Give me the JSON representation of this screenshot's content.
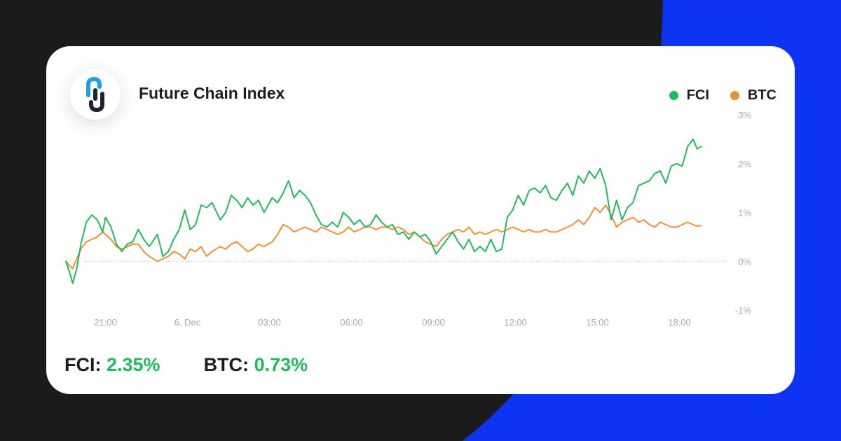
{
  "header": {
    "title": "Future Chain Index"
  },
  "legend": [
    {
      "name": "FCI",
      "color": "#1dbb5b"
    },
    {
      "name": "BTC",
      "color": "#f18f30"
    }
  ],
  "summary": [
    {
      "label": "FCI:",
      "value": "2.35%"
    },
    {
      "label": "BTC:",
      "value": "0.73%"
    }
  ],
  "colors": {
    "positive": "#1dbb5b",
    "fci": "#1dbb5b",
    "btc": "#f18f30",
    "bg_blue": "#0d34f2",
    "bg_dark": "#1b1b1c"
  },
  "chart_data": {
    "type": "line",
    "title": "Future Chain Index",
    "x_unit": "hours",
    "x_tick_labels": [
      {
        "x": 21,
        "label": "21:00"
      },
      {
        "x": 24,
        "label": "6. Dec"
      },
      {
        "x": 27,
        "label": "03:00"
      },
      {
        "x": 30,
        "label": "06:00"
      },
      {
        "x": 33,
        "label": "09:00"
      },
      {
        "x": 36,
        "label": "12:00"
      },
      {
        "x": 39,
        "label": "15:00"
      },
      {
        "x": 42,
        "label": "18:00"
      }
    ],
    "xlim": [
      19.5,
      43.5
    ],
    "ylim": [
      -1,
      3
    ],
    "y_ticks": [
      -1,
      0,
      1,
      2,
      3
    ],
    "y_tick_labels": [
      "-1%",
      "0%",
      "1%",
      "2%",
      "3%"
    ],
    "y_axis_side": "right",
    "baseline": 0,
    "legend_position": "top-right",
    "series": [
      {
        "name": "FCI",
        "x": [
          19.55,
          19.7,
          19.8,
          19.95,
          20.1,
          20.3,
          20.5,
          20.7,
          20.9,
          21.0,
          21.2,
          21.4,
          21.6,
          21.8,
          22.0,
          22.2,
          22.4,
          22.6,
          22.9,
          23.1,
          23.3,
          23.5,
          23.7,
          23.9,
          24.1,
          24.3,
          24.5,
          24.7,
          24.9,
          25.2,
          25.4,
          25.6,
          25.8,
          26.0,
          26.2,
          26.4,
          26.6,
          26.8,
          27.1,
          27.3,
          27.5,
          27.7,
          27.9,
          28.1,
          28.3,
          28.5,
          28.7,
          28.9,
          29.1,
          29.3,
          29.5,
          29.7,
          29.9,
          30.1,
          30.3,
          30.5,
          30.7,
          30.9,
          31.1,
          31.3,
          31.5,
          31.7,
          31.9,
          32.1,
          32.3,
          32.5,
          32.7,
          32.9,
          33.1,
          33.3,
          33.5,
          33.7,
          33.9,
          34.1,
          34.3,
          34.5,
          34.7,
          34.9,
          35.1,
          35.3,
          35.5,
          35.7,
          35.9,
          36.1,
          36.3,
          36.5,
          36.7,
          36.9,
          37.1,
          37.3,
          37.5,
          37.7,
          37.9,
          38.1,
          38.3,
          38.5,
          38.7,
          38.9,
          39.1,
          39.3,
          39.5,
          39.7,
          39.9,
          40.1,
          40.3,
          40.5,
          40.7,
          40.9,
          41.1,
          41.3,
          41.5,
          41.7,
          41.9,
          42.1,
          42.3,
          42.5,
          42.65,
          42.8
        ],
        "values": [
          0.0,
          -0.25,
          -0.45,
          -0.15,
          0.35,
          0.8,
          0.95,
          0.85,
          0.6,
          0.9,
          0.7,
          0.35,
          0.2,
          0.35,
          0.4,
          0.65,
          0.45,
          0.3,
          0.55,
          0.1,
          0.2,
          0.45,
          0.65,
          1.05,
          0.65,
          0.75,
          1.15,
          1.1,
          1.2,
          0.85,
          1.0,
          1.35,
          1.25,
          1.1,
          1.3,
          1.15,
          1.25,
          1.0,
          1.3,
          1.2,
          1.4,
          1.65,
          1.3,
          1.45,
          1.35,
          1.2,
          0.95,
          0.75,
          0.7,
          0.8,
          0.7,
          1.0,
          0.9,
          0.75,
          0.85,
          0.7,
          0.75,
          0.95,
          0.8,
          0.7,
          0.75,
          0.55,
          0.6,
          0.45,
          0.6,
          0.5,
          0.55,
          0.4,
          0.15,
          0.3,
          0.45,
          0.6,
          0.4,
          0.25,
          0.45,
          0.2,
          0.3,
          0.2,
          0.45,
          0.2,
          0.25,
          0.9,
          1.05,
          1.35,
          1.15,
          1.45,
          1.5,
          1.4,
          1.55,
          1.3,
          1.25,
          1.45,
          1.6,
          1.35,
          1.75,
          1.6,
          1.85,
          1.7,
          1.9,
          1.55,
          0.85,
          1.25,
          0.85,
          1.1,
          1.2,
          1.55,
          1.6,
          1.65,
          1.8,
          1.85,
          1.6,
          1.95,
          2.0,
          1.95,
          2.35,
          2.5,
          2.3,
          2.35
        ]
      },
      {
        "name": "BTC",
        "x": [
          19.55,
          19.7,
          19.8,
          19.95,
          20.1,
          20.3,
          20.5,
          20.7,
          20.9,
          21.0,
          21.2,
          21.4,
          21.6,
          21.8,
          22.0,
          22.2,
          22.4,
          22.6,
          22.9,
          23.1,
          23.3,
          23.5,
          23.7,
          23.9,
          24.1,
          24.3,
          24.5,
          24.7,
          24.9,
          25.2,
          25.4,
          25.6,
          25.8,
          26.0,
          26.2,
          26.4,
          26.6,
          26.8,
          27.1,
          27.3,
          27.5,
          27.7,
          27.9,
          28.1,
          28.3,
          28.5,
          28.7,
          28.9,
          29.1,
          29.3,
          29.5,
          29.7,
          29.9,
          30.1,
          30.3,
          30.5,
          30.7,
          30.9,
          31.1,
          31.3,
          31.5,
          31.7,
          31.9,
          32.1,
          32.3,
          32.5,
          32.7,
          32.9,
          33.1,
          33.3,
          33.5,
          33.7,
          33.9,
          34.1,
          34.3,
          34.5,
          34.7,
          34.9,
          35.1,
          35.3,
          35.5,
          35.7,
          35.9,
          36.1,
          36.3,
          36.5,
          36.7,
          36.9,
          37.1,
          37.3,
          37.5,
          37.7,
          37.9,
          38.1,
          38.3,
          38.5,
          38.7,
          38.9,
          39.1,
          39.3,
          39.5,
          39.7,
          39.9,
          40.1,
          40.3,
          40.5,
          40.7,
          40.9,
          41.1,
          41.3,
          41.5,
          41.7,
          41.9,
          42.1,
          42.3,
          42.5,
          42.65,
          42.8
        ],
        "values": [
          0.0,
          -0.1,
          -0.15,
          0.05,
          0.25,
          0.4,
          0.45,
          0.5,
          0.6,
          0.55,
          0.45,
          0.3,
          0.25,
          0.3,
          0.35,
          0.35,
          0.2,
          0.1,
          0.0,
          0.05,
          0.1,
          0.2,
          0.15,
          0.05,
          0.25,
          0.2,
          0.3,
          0.1,
          0.2,
          0.3,
          0.25,
          0.35,
          0.4,
          0.3,
          0.2,
          0.25,
          0.35,
          0.3,
          0.4,
          0.55,
          0.75,
          0.7,
          0.6,
          0.65,
          0.7,
          0.65,
          0.6,
          0.7,
          0.65,
          0.6,
          0.55,
          0.6,
          0.7,
          0.6,
          0.65,
          0.7,
          0.7,
          0.65,
          0.7,
          0.7,
          0.65,
          0.7,
          0.65,
          0.55,
          0.6,
          0.5,
          0.4,
          0.35,
          0.3,
          0.45,
          0.55,
          0.6,
          0.65,
          0.6,
          0.7,
          0.55,
          0.6,
          0.55,
          0.6,
          0.65,
          0.6,
          0.65,
          0.7,
          0.65,
          0.6,
          0.65,
          0.6,
          0.6,
          0.65,
          0.6,
          0.6,
          0.65,
          0.7,
          0.75,
          0.85,
          0.75,
          0.9,
          1.1,
          1.0,
          1.15,
          0.95,
          0.7,
          0.8,
          0.85,
          0.9,
          0.8,
          0.85,
          0.75,
          0.7,
          0.8,
          0.75,
          0.7,
          0.7,
          0.75,
          0.8,
          0.75,
          0.72,
          0.73
        ]
      }
    ]
  }
}
